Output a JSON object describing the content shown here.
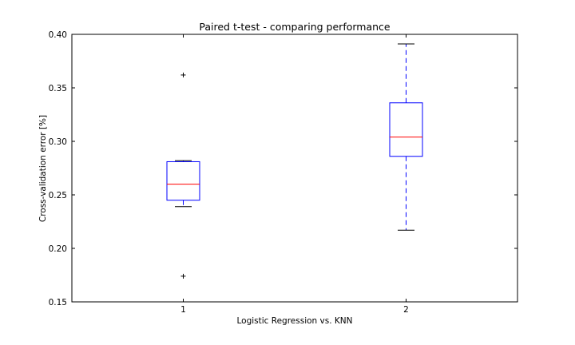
{
  "chart_data": {
    "type": "box",
    "title": "Paired t-test - comparing performance",
    "xlabel": "Logistic Regression   vs.   KNN",
    "ylabel": "Cross-validation error [%]",
    "ylim": [
      0.15,
      0.4
    ],
    "yticks": [
      {
        "value": 0.15,
        "label": "0.15"
      },
      {
        "value": 0.2,
        "label": "0.20"
      },
      {
        "value": 0.25,
        "label": "0.25"
      },
      {
        "value": 0.3,
        "label": "0.30"
      },
      {
        "value": 0.35,
        "label": "0.35"
      },
      {
        "value": 0.4,
        "label": "0.40"
      }
    ],
    "xlim": [
      0.5,
      2.5
    ],
    "grid": false,
    "boxes": [
      {
        "position": 1,
        "tick_label": "1",
        "whisker_low": 0.239,
        "q1": 0.245,
        "median": 0.26,
        "q3": 0.281,
        "whisker_high": 0.282,
        "fliers": [
          0.362,
          0.174
        ]
      },
      {
        "position": 2,
        "tick_label": "2",
        "whisker_low": 0.217,
        "q1": 0.286,
        "median": 0.304,
        "q3": 0.336,
        "whisker_high": 0.391,
        "fliers": []
      }
    ],
    "colors": {
      "box": "#0000ff",
      "median": "#ff0000",
      "whisker": "#0000ff",
      "cap": "#000000",
      "flier": "#000000",
      "frame": "#000000"
    }
  }
}
